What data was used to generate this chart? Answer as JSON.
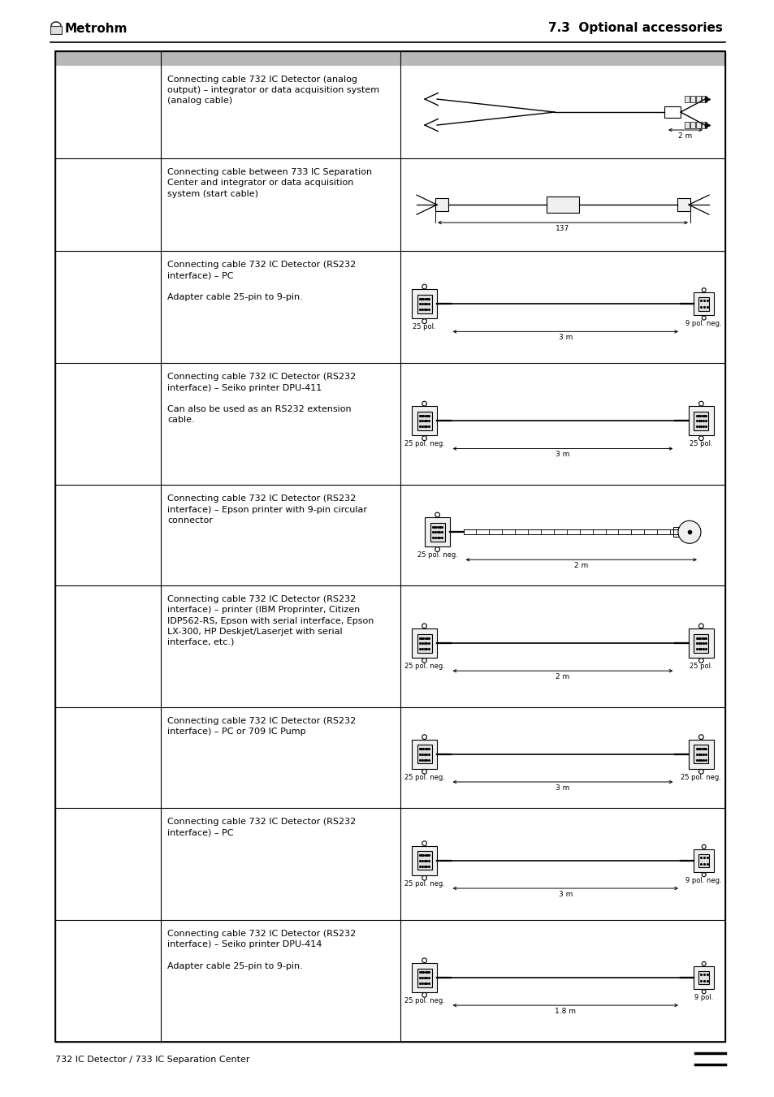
{
  "page_title": "7.3  Optional accessories",
  "logo_text": "Metrohm",
  "footer_text": "732 IC Detector / 733 IC Separation Center",
  "background_color": "#ffffff",
  "rows": [
    {
      "text": "Connecting cable 732 IC Detector (analog\noutput) – integrator or data acquisition system\n(analog cable)",
      "cable_label_left": "",
      "cable_label_right": "2 m",
      "cable_type": "analog"
    },
    {
      "text": "Connecting cable between 733 IC Separation\nCenter and integrator or data acquisition\nsystem (start cable)",
      "cable_label_right": "137",
      "cable_type": "start"
    },
    {
      "text": "Connecting cable 732 IC Detector (RS232\ninterface) – PC\n\nAdapter cable 25-pin to 9-pin.",
      "cable_label_left": "25 pol.",
      "cable_label_right": "9 pol. neg.",
      "cable_length": "3 m",
      "cable_type": "rs232_25_9"
    },
    {
      "text": "Connecting cable 732 IC Detector (RS232\ninterface) – Seiko printer DPU-411\n\nCan also be used as an RS232 extension\ncable.",
      "cable_label_left": "25 pol. neg.",
      "cable_label_right": "25 pol.",
      "cable_length": "3 m",
      "cable_type": "rs232_25_25"
    },
    {
      "text": "Connecting cable 732 IC Detector (RS232\ninterface) – Epson printer with 9-pin circular\nconnector",
      "cable_label_left": "25 pol. neg.",
      "cable_length": "2 m",
      "cable_type": "rs232_circ"
    },
    {
      "text": "Connecting cable 732 IC Detector (RS232\ninterface) – printer (IBM Proprinter, Citizen\nIDP562-RS, Epson with serial interface, Epson\nLX-300, HP Deskjet/Laserjet with serial\ninterface, etc.)",
      "cable_label_left": "25 pol. neg.",
      "cable_label_right": "25 pol.",
      "cable_length": "2 m",
      "cable_type": "rs232_25_25m"
    },
    {
      "text": "Connecting cable 732 IC Detector (RS232\ninterface) – PC or 709 IC Pump",
      "cable_label_left": "25 pol. neg.",
      "cable_label_right": "25 pol. neg.",
      "cable_length": "3 m",
      "cable_type": "rs232_25_25neg"
    },
    {
      "text": "Connecting cable 732 IC Detector (RS232\ninterface) – PC",
      "cable_label_left": "25 pol. neg.",
      "cable_label_right": "9 pol. neg.",
      "cable_length": "3 m",
      "cable_type": "rs232_25_9neg"
    },
    {
      "text": "Connecting cable 732 IC Detector (RS232\ninterface) – Seiko printer DPU-414\n\nAdapter cable 25-pin to 9-pin.",
      "cable_label_left": "25 pol. neg.",
      "cable_label_right": "9 pol.",
      "cable_length": "1.8 m",
      "cable_type": "rs232_dpu414"
    }
  ]
}
